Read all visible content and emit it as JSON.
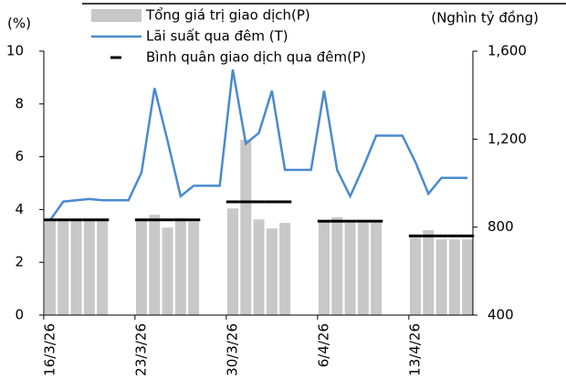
{
  "chart_data": {
    "type": "combo",
    "y_label": "(%)",
    "y2_label": "(Nghìn tỷ đồng)",
    "categories": [
      "16/3/26",
      null,
      null,
      null,
      null,
      null,
      null,
      "23/3/26",
      null,
      null,
      null,
      null,
      null,
      null,
      "30/3/26",
      null,
      null,
      null,
      null,
      null,
      null,
      "6/4/26",
      null,
      null,
      null,
      null,
      null,
      null,
      "13/4/26",
      null,
      null,
      null,
      null
    ],
    "ylim": [
      0,
      10
    ],
    "yticks": [
      0,
      2,
      4,
      6,
      8,
      10
    ],
    "y2lim": [
      400,
      1600
    ],
    "y2ticks": [
      400,
      800,
      {
        "value": 1200,
        "label": "1,200"
      },
      {
        "value": 1600,
        "label": "1,600"
      }
    ],
    "series": [
      {
        "name": "Tổng giá trị giao dịch(P)",
        "kind": "bar",
        "axis": "y2",
        "color": "#c8c8c8",
        "values": [
          830,
          830,
          830,
          830,
          835,
          null,
          null,
          835,
          856,
          798,
          840,
          825,
          null,
          null,
          885,
          1197,
          835,
          794,
          819,
          null,
          null,
          825,
          845,
          820,
          820,
          820,
          null,
          null,
          752,
          786,
          744,
          744,
          744
        ]
      },
      {
        "name": "Lãi suất qua đêm (T)",
        "kind": "line",
        "color": "#4a8ad0",
        "values": [
          3.6,
          4.3,
          4.35,
          4.4,
          4.35,
          4.35,
          4.35,
          5.4,
          8.6,
          6.6,
          4.5,
          4.9,
          4.9,
          4.9,
          9.3,
          6.5,
          6.9,
          8.5,
          5.5,
          5.5,
          5.5,
          8.5,
          5.5,
          4.5,
          5.6,
          6.8,
          6.8,
          6.8,
          5.8,
          4.6,
          5.2,
          5.2,
          5.2
        ]
      },
      {
        "name": "Bình quân giao dịch qua đêm(P)",
        "kind": "dash",
        "axis": "y2",
        "color": "#000000",
        "values": [
          833,
          833,
          833,
          833,
          833,
          null,
          null,
          833,
          833,
          833,
          833,
          833,
          null,
          null,
          915,
          915,
          915,
          915,
          915,
          null,
          null,
          827,
          827,
          827,
          827,
          827,
          null,
          null,
          760,
          760,
          760,
          760,
          760
        ]
      }
    ]
  }
}
